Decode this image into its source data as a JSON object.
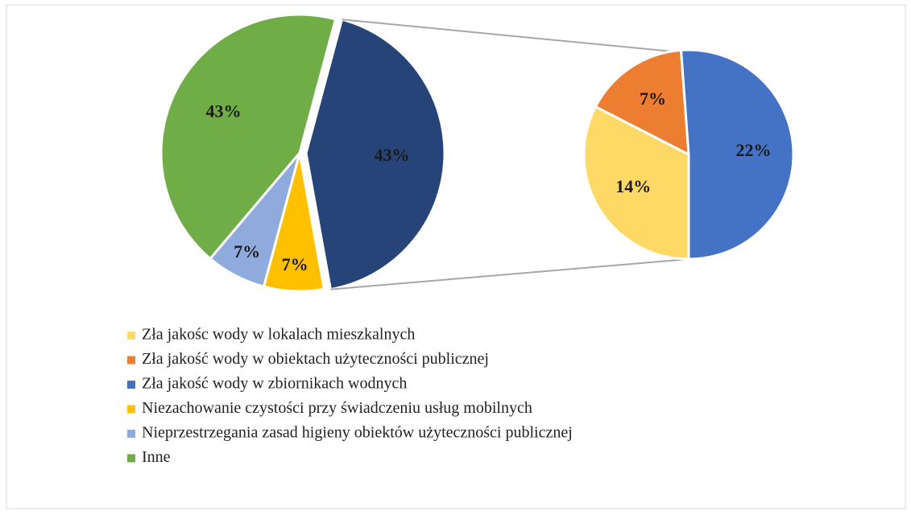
{
  "chart_data": {
    "type": "pie-of-pie",
    "other": {
      "value": 43,
      "color": "#264478"
    },
    "slices": [
      {
        "name": "Zła jakośc wody w lokalach mieszkalnych",
        "color": "#FFD966",
        "value": 14,
        "pie": "secondary"
      },
      {
        "name": "Zła jakość wody w obiektach użyteczności publicznej",
        "color": "#ED7D31",
        "value": 7,
        "pie": "secondary"
      },
      {
        "name": "Zła jakość wody w zbiornikach wodnych",
        "color": "#4472C4",
        "value": 22,
        "pie": "secondary"
      },
      {
        "name": "Niezachowanie czystości przy świadczeniu usług mobilnych",
        "color": "#FFC000",
        "value": 7,
        "pie": "main"
      },
      {
        "name": "Nieprzestrzegania zasad higieny obiektów użyteczności publicznej",
        "color": "#8FAADC",
        "value": 7,
        "pie": "main"
      },
      {
        "name": "Inne",
        "color": "#70AD47",
        "value": 43,
        "pie": "main"
      }
    ]
  }
}
